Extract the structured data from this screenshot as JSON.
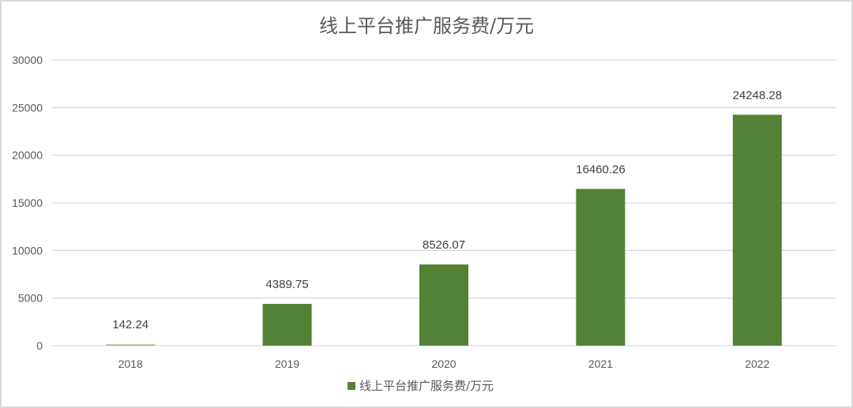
{
  "chart_data": {
    "type": "bar",
    "title": "线上平台推广服务费/万元",
    "categories": [
      "2018",
      "2019",
      "2020",
      "2021",
      "2022"
    ],
    "series": [
      {
        "name": "线上平台推广服务费/万元",
        "values": [
          142.24,
          4389.75,
          8526.07,
          16460.26,
          24248.28
        ],
        "color": "#538135"
      }
    ],
    "data_labels": [
      "142.24",
      "4389.75",
      "8526.07",
      "16460.26",
      "24248.28"
    ],
    "ylim": [
      0,
      30000
    ],
    "yticks": [
      "0",
      "5000",
      "10000",
      "15000",
      "20000",
      "25000",
      "30000"
    ],
    "grid": true,
    "legend": "bottom",
    "colors": {
      "bar": "#538135",
      "first_bar": "#a9c08f",
      "grid": "#d9d9d9"
    }
  }
}
